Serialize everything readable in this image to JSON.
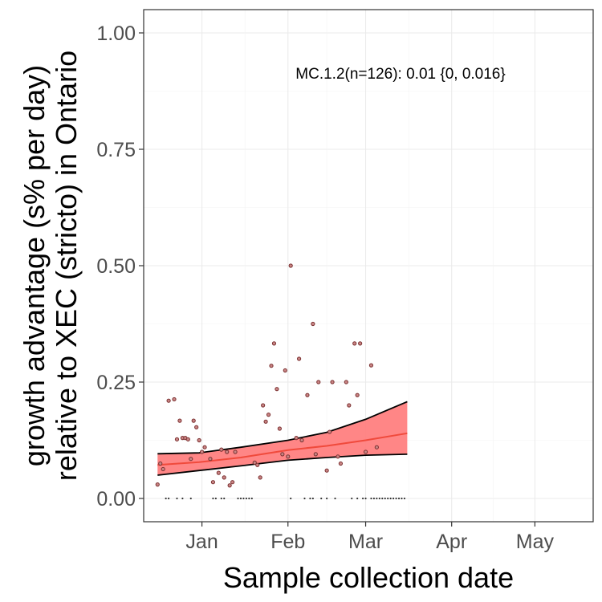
{
  "chart_data": {
    "type": "scatter",
    "title": "",
    "xlabel": "Sample collection date",
    "ylabel_lines": [
      "growth advantage (s% per day)",
      "relative to XEC (stricto) in Ontario"
    ],
    "annotation": "MC.1.2(n=126): 0.01 {0, 0.016}",
    "x_ticks": [
      {
        "date": "2025-01-01",
        "label": "Jan"
      },
      {
        "date": "2025-02-01",
        "label": "Feb"
      },
      {
        "date": "2025-03-01",
        "label": "Mar"
      },
      {
        "date": "2025-04-01",
        "label": "Apr"
      },
      {
        "date": "2025-05-01",
        "label": "May"
      }
    ],
    "y_ticks": [
      {
        "value": 0.0,
        "label": "0.00"
      },
      {
        "value": 0.25,
        "label": "0.25"
      },
      {
        "value": 0.5,
        "label": "0.50"
      },
      {
        "value": 0.75,
        "label": "0.75"
      },
      {
        "value": 1.0,
        "label": "1.00"
      }
    ],
    "xlim": [
      "2024-12-11",
      "2025-05-22"
    ],
    "ylim": [
      -0.05,
      1.05
    ],
    "grid": true,
    "colors": {
      "fit_line": "#f04a3c",
      "ribbon_fill": "#ff7f7f",
      "ribbon_border": "#000000",
      "points": "#7a3030",
      "grid": "#ebebeb",
      "panel_border": "#333333"
    },
    "fit": {
      "x": [
        "2024-12-16",
        "2024-12-31",
        "2025-01-15",
        "2025-02-01",
        "2025-02-15",
        "2025-03-01",
        "2025-03-16"
      ],
      "y": [
        0.072,
        0.078,
        0.088,
        0.104,
        0.113,
        0.125,
        0.14
      ],
      "lower": [
        0.05,
        0.06,
        0.07,
        0.082,
        0.088,
        0.093,
        0.095
      ],
      "upper": [
        0.096,
        0.098,
        0.11,
        0.125,
        0.142,
        0.17,
        0.208
      ]
    },
    "points": [
      {
        "x": "2024-12-16",
        "y": 0.03
      },
      {
        "x": "2024-12-17",
        "y": 0.075
      },
      {
        "x": "2024-12-18",
        "y": 0.063
      },
      {
        "x": "2024-12-20",
        "y": 0.21
      },
      {
        "x": "2024-12-22",
        "y": 0.213
      },
      {
        "x": "2024-12-23",
        "y": 0.127
      },
      {
        "x": "2024-12-24",
        "y": 0.167
      },
      {
        "x": "2024-12-25",
        "y": 0.13
      },
      {
        "x": "2024-12-26",
        "y": 0.13
      },
      {
        "x": "2024-12-27",
        "y": 0.127
      },
      {
        "x": "2024-12-28",
        "y": 0.085
      },
      {
        "x": "2024-12-29",
        "y": 0.167
      },
      {
        "x": "2024-12-30",
        "y": 0.153
      },
      {
        "x": "2024-12-31",
        "y": 0.125
      },
      {
        "x": "2025-01-01",
        "y": 0.1
      },
      {
        "x": "2025-01-02",
        "y": 0.11
      },
      {
        "x": "2025-01-04",
        "y": 0.085
      },
      {
        "x": "2025-01-05",
        "y": 0.035
      },
      {
        "x": "2025-01-07",
        "y": 0.055
      },
      {
        "x": "2025-01-08",
        "y": 0.105
      },
      {
        "x": "2025-01-09",
        "y": 0.045
      },
      {
        "x": "2025-01-10",
        "y": 0.1
      },
      {
        "x": "2025-01-11",
        "y": 0.028
      },
      {
        "x": "2025-01-12",
        "y": 0.035
      },
      {
        "x": "2025-01-13",
        "y": 0.1
      },
      {
        "x": "2025-01-20",
        "y": 0.077
      },
      {
        "x": "2025-01-21",
        "y": 0.072
      },
      {
        "x": "2025-01-22",
        "y": 0.045
      },
      {
        "x": "2025-01-23",
        "y": 0.2
      },
      {
        "x": "2025-01-24",
        "y": 0.165
      },
      {
        "x": "2025-01-25",
        "y": 0.18
      },
      {
        "x": "2025-01-26",
        "y": 0.285
      },
      {
        "x": "2025-01-27",
        "y": 0.333
      },
      {
        "x": "2025-01-28",
        "y": 0.235
      },
      {
        "x": "2025-01-29",
        "y": 0.15
      },
      {
        "x": "2025-01-30",
        "y": 0.095
      },
      {
        "x": "2025-01-31",
        "y": 0.275
      },
      {
        "x": "2025-02-01",
        "y": 0.09
      },
      {
        "x": "2025-02-02",
        "y": 0.5
      },
      {
        "x": "2025-02-04",
        "y": 0.13
      },
      {
        "x": "2025-02-05",
        "y": 0.3
      },
      {
        "x": "2025-02-06",
        "y": 0.125
      },
      {
        "x": "2025-02-08",
        "y": 0.222
      },
      {
        "x": "2025-02-10",
        "y": 0.375
      },
      {
        "x": "2025-02-11",
        "y": 0.095
      },
      {
        "x": "2025-02-12",
        "y": 0.25
      },
      {
        "x": "2025-02-15",
        "y": 0.06
      },
      {
        "x": "2025-02-16",
        "y": 0.143
      },
      {
        "x": "2025-02-17",
        "y": 0.25
      },
      {
        "x": "2025-02-19",
        "y": 0.09
      },
      {
        "x": "2025-02-20",
        "y": 0.075
      },
      {
        "x": "2025-02-22",
        "y": 0.25
      },
      {
        "x": "2025-02-23",
        "y": 0.2
      },
      {
        "x": "2025-02-25",
        "y": 0.333
      },
      {
        "x": "2025-02-26",
        "y": 0.222
      },
      {
        "x": "2025-02-27",
        "y": 0.333
      },
      {
        "x": "2025-03-01",
        "y": 0.1
      },
      {
        "x": "2025-03-03",
        "y": 0.286
      },
      {
        "x": "2025-03-05",
        "y": 0.11
      }
    ],
    "zero_points": [
      "2024-12-19",
      "2024-12-20",
      "2024-12-23",
      "2024-12-25",
      "2024-12-28",
      "2025-01-05",
      "2025-01-06",
      "2025-01-08",
      "2025-01-09",
      "2025-01-14",
      "2025-01-15",
      "2025-01-16",
      "2025-01-17",
      "2025-01-18",
      "2025-01-19",
      "2025-02-02",
      "2025-02-07",
      "2025-02-09",
      "2025-02-10",
      "2025-02-13",
      "2025-02-15",
      "2025-02-18",
      "2025-02-24",
      "2025-02-26",
      "2025-02-28",
      "2025-03-01",
      "2025-03-03",
      "2025-03-04",
      "2025-03-05",
      "2025-03-06",
      "2025-03-07",
      "2025-03-08",
      "2025-03-09",
      "2025-03-10",
      "2025-03-11",
      "2025-03-12",
      "2025-03-13",
      "2025-03-14",
      "2025-03-15"
    ]
  }
}
